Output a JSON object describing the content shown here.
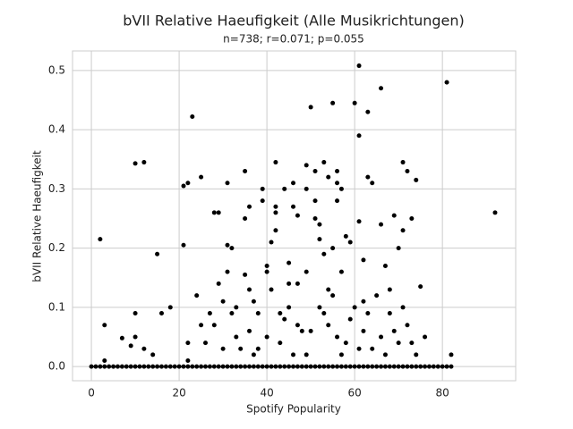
{
  "chart_data": {
    "type": "scatter",
    "title": "bVII Relative Haeufigkeit (Alle Musikrichtungen)",
    "subtitle": "n=738; r=0.071; p=0.055",
    "xlabel": "Spotify Popularity",
    "ylabel": "bVII Relative Haeufigkeit",
    "color": "#000000",
    "grid": true,
    "xlim": [
      -4.3,
      96.7
    ],
    "ylim": [
      -0.024,
      0.533
    ],
    "xticks": [
      0,
      20,
      40,
      60,
      80
    ],
    "yticks": [
      {
        "value": 0,
        "label": "0.0"
      },
      0.1,
      0.2,
      0.3,
      0.4,
      0.5
    ],
    "x": [
      0,
      1,
      2,
      3,
      4,
      5,
      6,
      7,
      8,
      9,
      10,
      11,
      12,
      13,
      14,
      15,
      16,
      17,
      18,
      19,
      20,
      21,
      22,
      23,
      24,
      25,
      26,
      27,
      28,
      29,
      30,
      31,
      32,
      33,
      34,
      35,
      36,
      37,
      38,
      39,
      40,
      41,
      42,
      43,
      44,
      45,
      46,
      47,
      48,
      49,
      50,
      51,
      52,
      53,
      54,
      55,
      56,
      57,
      58,
      59,
      60,
      61,
      62,
      63,
      64,
      65,
      66,
      67,
      68,
      69,
      70,
      71,
      72,
      73,
      74,
      75,
      76,
      77,
      78,
      79,
      80,
      81,
      82,
      2,
      3,
      3,
      7,
      9,
      10,
      12,
      10,
      10,
      12,
      14,
      15,
      16,
      18,
      21,
      21,
      22,
      23,
      25,
      22,
      22,
      24,
      25,
      26,
      27,
      28,
      29,
      29,
      30,
      31,
      31,
      32,
      31,
      32,
      33,
      34,
      35,
      35,
      36,
      35,
      36,
      37,
      38,
      38,
      39,
      39,
      40,
      40,
      41,
      41,
      42,
      42,
      42,
      42,
      43,
      44,
      44,
      45,
      45,
      46,
      46,
      47,
      47,
      48,
      49,
      49,
      49,
      50,
      51,
      51,
      51,
      52,
      52,
      53,
      53,
      54,
      54,
      55,
      55,
      56,
      56,
      56,
      57,
      57,
      58,
      59,
      60,
      61,
      61,
      61,
      62,
      62,
      63,
      63,
      64,
      66,
      66,
      67,
      68,
      69,
      70,
      71,
      71,
      72,
      73,
      74,
      75,
      76,
      81,
      82,
      92,
      40,
      43,
      46,
      50,
      52,
      54,
      56,
      58,
      60,
      62,
      64,
      66,
      68,
      70,
      72,
      74,
      45,
      47,
      49,
      53,
      55,
      57,
      59,
      61,
      63,
      65,
      67,
      69,
      71,
      73,
      36,
      37,
      33,
      30,
      28
    ],
    "y": [
      0,
      0,
      0,
      0,
      0,
      0,
      0,
      0,
      0,
      0,
      0,
      0,
      0,
      0,
      0,
      0,
      0,
      0,
      0,
      0,
      0,
      0,
      0,
      0,
      0,
      0,
      0,
      0,
      0,
      0,
      0,
      0,
      0,
      0,
      0,
      0,
      0,
      0,
      0,
      0,
      0,
      0,
      0,
      0,
      0,
      0,
      0,
      0,
      0,
      0,
      0,
      0,
      0,
      0,
      0,
      0,
      0,
      0,
      0,
      0,
      0,
      0,
      0,
      0,
      0,
      0,
      0,
      0,
      0,
      0,
      0,
      0,
      0,
      0,
      0,
      0,
      0,
      0,
      0,
      0,
      0,
      0,
      0,
      0.215,
      0.07,
      0.01,
      0.048,
      0.035,
      0.343,
      0.345,
      0.09,
      0.05,
      0.03,
      0.02,
      0.19,
      0.09,
      0.1,
      0.305,
      0.205,
      0.31,
      0.422,
      0.32,
      0.04,
      0.01,
      0.12,
      0.07,
      0.04,
      0.09,
      0.26,
      0.26,
      0.14,
      0.11,
      0.31,
      0.205,
      0.2,
      0.16,
      0.09,
      0.05,
      0.03,
      0.33,
      0.25,
      0.27,
      0.155,
      0.13,
      0.11,
      0.09,
      0.03,
      0.3,
      0.28,
      0.17,
      0.16,
      0.21,
      0.13,
      0.345,
      0.27,
      0.26,
      0.23,
      0.09,
      0.3,
      0.08,
      0.175,
      0.14,
      0.31,
      0.27,
      0.255,
      0.14,
      0.06,
      0.34,
      0.3,
      0.16,
      0.438,
      0.33,
      0.28,
      0.25,
      0.24,
      0.215,
      0.345,
      0.19,
      0.32,
      0.13,
      0.445,
      0.2,
      0.33,
      0.31,
      0.28,
      0.3,
      0.16,
      0.22,
      0.21,
      0.445,
      0.508,
      0.39,
      0.245,
      0.11,
      0.18,
      0.32,
      0.43,
      0.31,
      0.47,
      0.24,
      0.17,
      0.13,
      0.255,
      0.2,
      0.345,
      0.23,
      0.33,
      0.25,
      0.315,
      0.135,
      0.05,
      0.48,
      0.02,
      0.26,
      0.05,
      0.04,
      0.02,
      0.06,
      0.1,
      0.07,
      0.05,
      0.04,
      0.1,
      0.06,
      0.03,
      0.05,
      0.09,
      0.04,
      0.07,
      0.02,
      0.1,
      0.07,
      0.02,
      0.09,
      0.12,
      0.02,
      0.08,
      0.03,
      0.09,
      0.12,
      0.02,
      0.06,
      0.1,
      0.04,
      0.06,
      0.02,
      0.1,
      0.03,
      0.07
    ]
  }
}
